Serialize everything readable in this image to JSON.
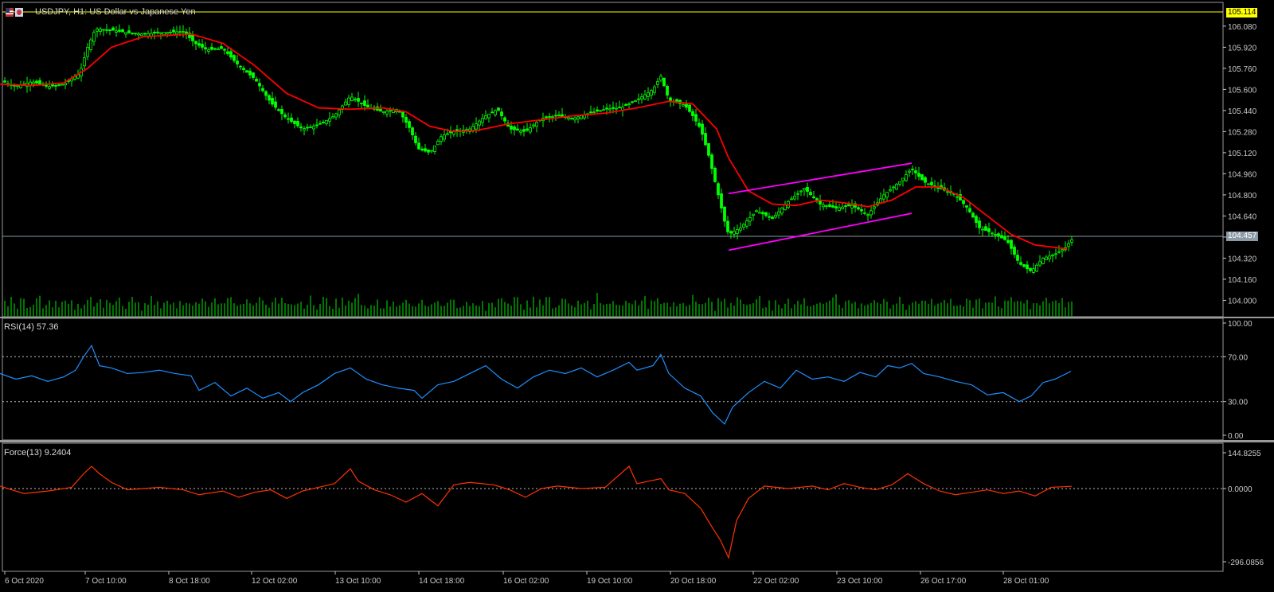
{
  "header": {
    "title": "USDJPY, H1:  US Dollar vs Japanese Yen",
    "icons": [
      "us-flag-icon",
      "japan-flag-icon"
    ]
  },
  "colors": {
    "background": "#000000",
    "candles": "#00ff00",
    "moving_average": "#ff0000",
    "channel": "#ff00ff",
    "volume": "#00aa00",
    "rsi_line": "#1e90ff",
    "force_line": "#ff3300",
    "axis_text": "#c8c8c8",
    "top_price_tag": "#ffff00",
    "current_price_tag": "#8c9aa6"
  },
  "price_tags": {
    "top": "105.114",
    "current": "104.457"
  },
  "chart_data": [
    {
      "type": "candlestick",
      "title": "USDJPY, H1:  US Dollar vs Japanese Yen",
      "ylim": [
        103.9,
        106.2
      ],
      "yticks": [
        "106.080",
        "105.920",
        "105.760",
        "105.600",
        "105.440",
        "105.280",
        "105.120",
        "104.960",
        "104.800",
        "104.640",
        "104.480",
        "104.320",
        "104.160",
        "104.000"
      ],
      "x_labels": [
        "6 Oct 2020",
        "7 Oct 10:00",
        "8 Oct 18:00",
        "12 Oct 02:00",
        "13 Oct 10:00",
        "14 Oct 18:00",
        "16 Oct 02:00",
        "19 Oct 10:00",
        "20 Oct 18:00",
        "22 Oct 02:00",
        "23 Oct 10:00",
        "26 Oct 17:00",
        "28 Oct 01:00"
      ],
      "close_path": [
        [
          0,
          105.67
        ],
        [
          20,
          105.62
        ],
        [
          40,
          105.66
        ],
        [
          60,
          105.62
        ],
        [
          80,
          105.64
        ],
        [
          100,
          105.72
        ],
        [
          110,
          105.92
        ],
        [
          120,
          106.06
        ],
        [
          140,
          106.05
        ],
        [
          160,
          106.03
        ],
        [
          180,
          106.02
        ],
        [
          200,
          106.03
        ],
        [
          230,
          106.04
        ],
        [
          245,
          105.95
        ],
        [
          260,
          105.9
        ],
        [
          280,
          105.91
        ],
        [
          300,
          105.78
        ],
        [
          320,
          105.68
        ],
        [
          340,
          105.5
        ],
        [
          360,
          105.38
        ],
        [
          380,
          105.3
        ],
        [
          400,
          105.33
        ],
        [
          420,
          105.4
        ],
        [
          440,
          105.55
        ],
        [
          460,
          105.47
        ],
        [
          480,
          105.43
        ],
        [
          500,
          105.45
        ],
        [
          515,
          105.3
        ],
        [
          525,
          105.15
        ],
        [
          540,
          105.12
        ],
        [
          555,
          105.25
        ],
        [
          570,
          105.28
        ],
        [
          590,
          105.3
        ],
        [
          610,
          105.4
        ],
        [
          625,
          105.45
        ],
        [
          640,
          105.3
        ],
        [
          660,
          105.28
        ],
        [
          680,
          105.38
        ],
        [
          700,
          105.4
        ],
        [
          720,
          105.38
        ],
        [
          740,
          105.42
        ],
        [
          760,
          105.45
        ],
        [
          780,
          105.46
        ],
        [
          800,
          105.52
        ],
        [
          820,
          105.6
        ],
        [
          830,
          105.7
        ],
        [
          840,
          105.52
        ],
        [
          860,
          105.48
        ],
        [
          870,
          105.4
        ],
        [
          880,
          105.3
        ],
        [
          890,
          105.1
        ],
        [
          900,
          104.85
        ],
        [
          910,
          104.6
        ],
        [
          915,
          104.5
        ],
        [
          930,
          104.55
        ],
        [
          950,
          104.68
        ],
        [
          970,
          104.62
        ],
        [
          990,
          104.75
        ],
        [
          1010,
          104.85
        ],
        [
          1030,
          104.73
        ],
        [
          1050,
          104.7
        ],
        [
          1070,
          104.72
        ],
        [
          1090,
          104.65
        ],
        [
          1110,
          104.8
        ],
        [
          1130,
          104.9
        ],
        [
          1145,
          105.0
        ],
        [
          1160,
          104.9
        ],
        [
          1180,
          104.85
        ],
        [
          1200,
          104.8
        ],
        [
          1215,
          104.7
        ],
        [
          1230,
          104.55
        ],
        [
          1250,
          104.5
        ],
        [
          1265,
          104.45
        ],
        [
          1280,
          104.28
        ],
        [
          1295,
          104.22
        ],
        [
          1310,
          104.32
        ],
        [
          1325,
          104.35
        ],
        [
          1338,
          104.4
        ],
        [
          1346,
          104.46
        ]
      ],
      "moving_average_path": [
        [
          0,
          105.64
        ],
        [
          40,
          105.63
        ],
        [
          80,
          105.65
        ],
        [
          110,
          105.76
        ],
        [
          140,
          105.92
        ],
        [
          180,
          106.0
        ],
        [
          240,
          106.02
        ],
        [
          280,
          105.95
        ],
        [
          320,
          105.78
        ],
        [
          360,
          105.57
        ],
        [
          400,
          105.46
        ],
        [
          440,
          105.45
        ],
        [
          480,
          105.46
        ],
        [
          510,
          105.43
        ],
        [
          540,
          105.32
        ],
        [
          570,
          105.28
        ],
        [
          600,
          105.29
        ],
        [
          640,
          105.34
        ],
        [
          680,
          105.37
        ],
        [
          720,
          105.4
        ],
        [
          760,
          105.42
        ],
        [
          800,
          105.46
        ],
        [
          840,
          105.51
        ],
        [
          870,
          105.49
        ],
        [
          900,
          105.3
        ],
        [
          915,
          105.08
        ],
        [
          940,
          104.83
        ],
        [
          970,
          104.73
        ],
        [
          1000,
          104.72
        ],
        [
          1030,
          104.76
        ],
        [
          1060,
          104.74
        ],
        [
          1090,
          104.71
        ],
        [
          1120,
          104.76
        ],
        [
          1150,
          104.86
        ],
        [
          1180,
          104.86
        ],
        [
          1210,
          104.78
        ],
        [
          1240,
          104.64
        ],
        [
          1270,
          104.5
        ],
        [
          1300,
          104.42
        ],
        [
          1340,
          104.39
        ]
      ],
      "channel_lines": [
        {
          "start": [
            915,
            104.81
          ],
          "end": [
            1145,
            105.04
          ]
        },
        {
          "start": [
            915,
            104.38
          ],
          "end": [
            1145,
            104.66
          ]
        }
      ],
      "volume_bars": [
        12,
        16,
        9,
        20,
        14,
        11,
        18,
        25,
        13,
        10,
        15,
        19,
        22,
        12,
        9,
        17,
        14,
        21,
        11,
        16,
        13,
        19,
        24,
        10,
        14,
        12,
        18,
        15,
        20,
        11
      ]
    },
    {
      "type": "line",
      "title": "RSI(14) 57.36",
      "ylim": [
        0,
        100
      ],
      "yticks": [
        "100.00",
        "70.00",
        "30.00",
        "0.00"
      ],
      "levels": [
        70,
        30
      ],
      "path": [
        [
          0,
          55
        ],
        [
          20,
          50
        ],
        [
          40,
          53
        ],
        [
          60,
          48
        ],
        [
          80,
          52
        ],
        [
          95,
          58
        ],
        [
          105,
          70
        ],
        [
          115,
          80
        ],
        [
          125,
          62
        ],
        [
          140,
          60
        ],
        [
          160,
          55
        ],
        [
          180,
          56
        ],
        [
          200,
          58
        ],
        [
          220,
          55
        ],
        [
          240,
          53
        ],
        [
          250,
          40
        ],
        [
          270,
          47
        ],
        [
          290,
          35
        ],
        [
          310,
          42
        ],
        [
          330,
          33
        ],
        [
          350,
          38
        ],
        [
          365,
          30
        ],
        [
          380,
          38
        ],
        [
          400,
          45
        ],
        [
          420,
          55
        ],
        [
          440,
          60
        ],
        [
          460,
          50
        ],
        [
          480,
          45
        ],
        [
          500,
          42
        ],
        [
          520,
          40
        ],
        [
          530,
          33
        ],
        [
          550,
          45
        ],
        [
          570,
          48
        ],
        [
          590,
          55
        ],
        [
          610,
          62
        ],
        [
          630,
          50
        ],
        [
          650,
          42
        ],
        [
          670,
          52
        ],
        [
          690,
          58
        ],
        [
          710,
          55
        ],
        [
          730,
          60
        ],
        [
          750,
          52
        ],
        [
          770,
          58
        ],
        [
          790,
          65
        ],
        [
          800,
          58
        ],
        [
          820,
          62
        ],
        [
          830,
          72
        ],
        [
          840,
          55
        ],
        [
          860,
          42
        ],
        [
          880,
          35
        ],
        [
          895,
          20
        ],
        [
          910,
          10
        ],
        [
          920,
          25
        ],
        [
          940,
          38
        ],
        [
          960,
          48
        ],
        [
          980,
          42
        ],
        [
          1000,
          58
        ],
        [
          1020,
          50
        ],
        [
          1040,
          52
        ],
        [
          1060,
          48
        ],
        [
          1080,
          56
        ],
        [
          1100,
          52
        ],
        [
          1115,
          62
        ],
        [
          1130,
          60
        ],
        [
          1145,
          64
        ],
        [
          1160,
          55
        ],
        [
          1180,
          52
        ],
        [
          1200,
          48
        ],
        [
          1220,
          45
        ],
        [
          1240,
          36
        ],
        [
          1260,
          38
        ],
        [
          1280,
          30
        ],
        [
          1295,
          35
        ],
        [
          1310,
          47
        ],
        [
          1325,
          50
        ],
        [
          1345,
          57
        ]
      ]
    },
    {
      "type": "line",
      "title": "Force(13) 9.2404",
      "ylim": [
        -296.0856,
        144.8255
      ],
      "yticks": [
        "144.8255",
        "0.0000",
        "-296.0856"
      ],
      "levels": [
        0
      ],
      "path": [
        [
          0,
          10
        ],
        [
          30,
          -20
        ],
        [
          60,
          -10
        ],
        [
          90,
          5
        ],
        [
          105,
          60
        ],
        [
          115,
          90
        ],
        [
          125,
          60
        ],
        [
          140,
          25
        ],
        [
          160,
          -5
        ],
        [
          180,
          0
        ],
        [
          200,
          5
        ],
        [
          230,
          -5
        ],
        [
          250,
          -25
        ],
        [
          280,
          -10
        ],
        [
          300,
          -35
        ],
        [
          320,
          -15
        ],
        [
          340,
          -5
        ],
        [
          360,
          -40
        ],
        [
          380,
          -10
        ],
        [
          400,
          5
        ],
        [
          420,
          20
        ],
        [
          440,
          80
        ],
        [
          450,
          30
        ],
        [
          470,
          -5
        ],
        [
          490,
          -25
        ],
        [
          510,
          -55
        ],
        [
          530,
          -20
        ],
        [
          550,
          -70
        ],
        [
          570,
          15
        ],
        [
          590,
          25
        ],
        [
          620,
          15
        ],
        [
          640,
          -5
        ],
        [
          660,
          -35
        ],
        [
          680,
          0
        ],
        [
          700,
          10
        ],
        [
          730,
          0
        ],
        [
          760,
          5
        ],
        [
          790,
          90
        ],
        [
          800,
          20
        ],
        [
          830,
          40
        ],
        [
          840,
          -5
        ],
        [
          860,
          -20
        ],
        [
          880,
          -80
        ],
        [
          895,
          -160
        ],
        [
          905,
          -210
        ],
        [
          915,
          -280
        ],
        [
          925,
          -130
        ],
        [
          940,
          -40
        ],
        [
          960,
          10
        ],
        [
          990,
          0
        ],
        [
          1020,
          10
        ],
        [
          1040,
          -5
        ],
        [
          1060,
          20
        ],
        [
          1080,
          5
        ],
        [
          1100,
          -5
        ],
        [
          1120,
          15
        ],
        [
          1140,
          60
        ],
        [
          1160,
          20
        ],
        [
          1180,
          -10
        ],
        [
          1200,
          -25
        ],
        [
          1220,
          -15
        ],
        [
          1240,
          -5
        ],
        [
          1260,
          -20
        ],
        [
          1280,
          -10
        ],
        [
          1300,
          -30
        ],
        [
          1320,
          5
        ],
        [
          1346,
          9
        ]
      ]
    }
  ]
}
